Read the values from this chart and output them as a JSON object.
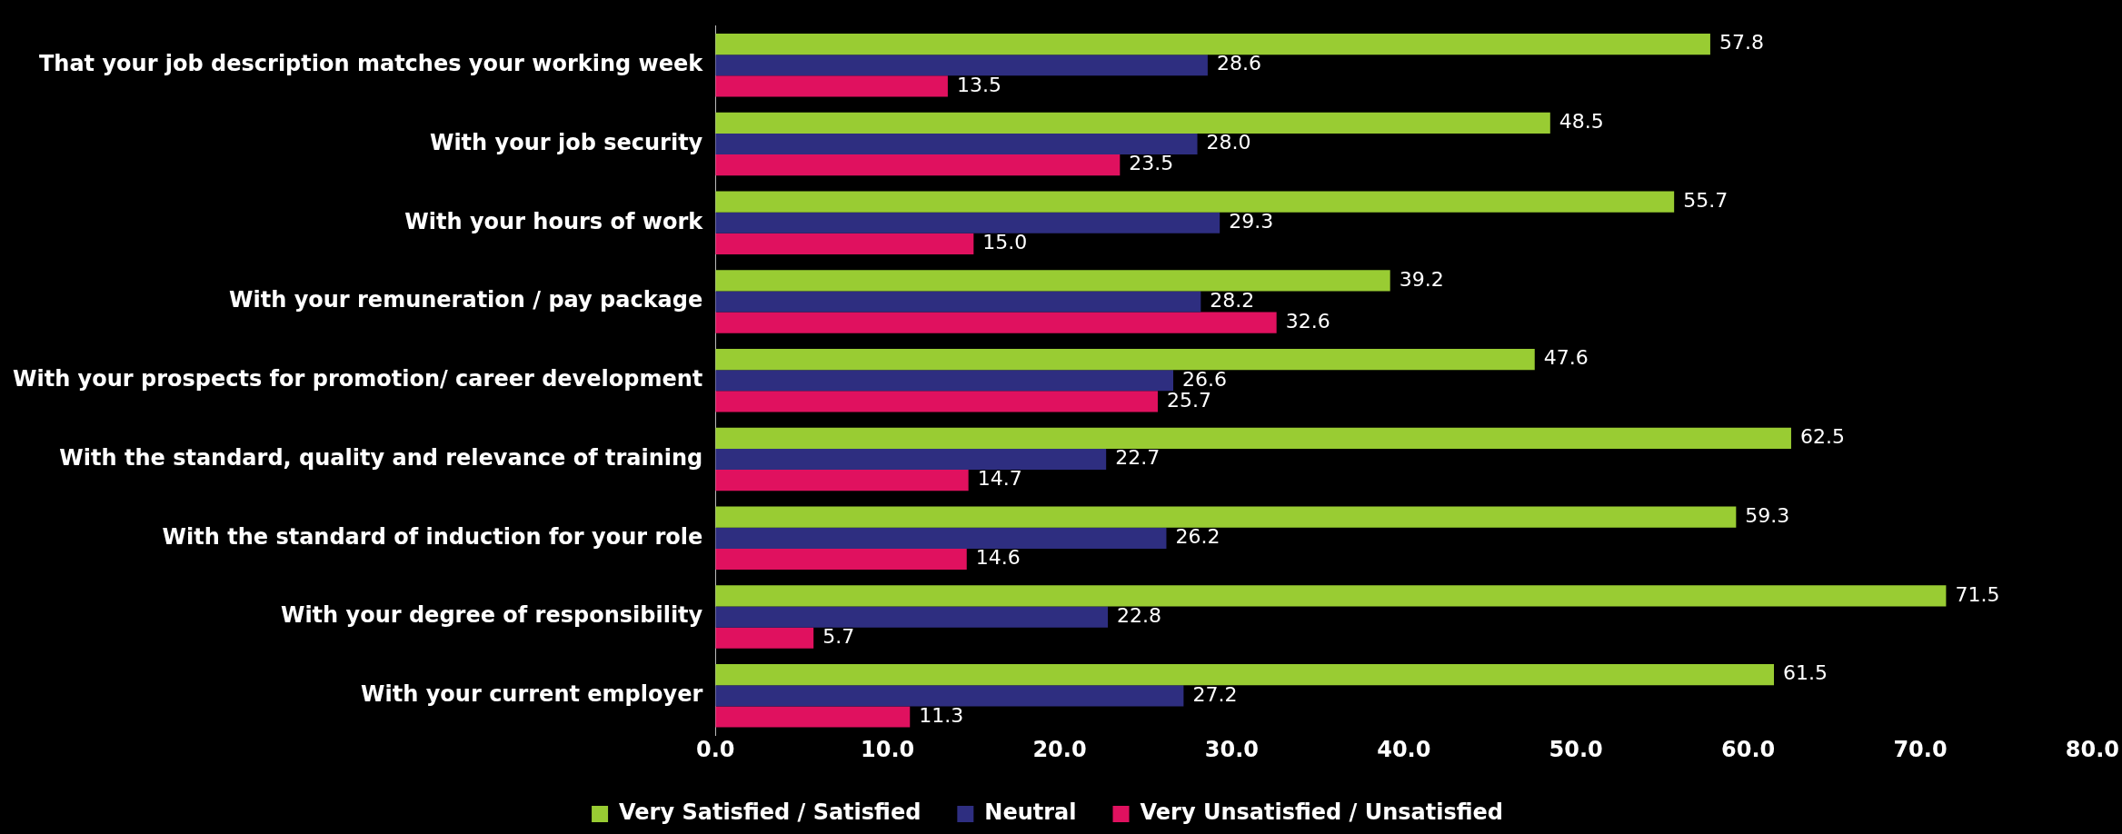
{
  "chart_data": {
    "type": "bar",
    "orientation": "horizontal",
    "categories": [
      "That your job description matches your working week",
      "With your job security",
      "With your hours of work",
      "With your remuneration / pay package",
      "With your prospects for promotion/ career development",
      "With the standard, quality and relevance of training",
      "With the standard of induction for your role",
      "With your degree of responsibility",
      "With your current employer"
    ],
    "series": [
      {
        "name": "Very Satisfied / Satisfied",
        "color": "#99cc33",
        "values": [
          57.8,
          48.5,
          55.7,
          39.2,
          47.6,
          62.5,
          59.3,
          71.5,
          61.5
        ],
        "value_labels": [
          "57.8",
          "48.5",
          "55.7",
          "39.2",
          "47.6",
          "62.5",
          "59.3",
          "71.5",
          "61.5"
        ]
      },
      {
        "name": "Neutral",
        "color": "#2e2e80",
        "values": [
          28.6,
          28.0,
          29.3,
          28.2,
          26.6,
          22.7,
          26.2,
          22.8,
          27.2
        ],
        "value_labels": [
          "28.6",
          "28.0",
          "29.3",
          "28.2",
          "26.6",
          "22.7",
          "26.2",
          "22.8",
          "27.2"
        ]
      },
      {
        "name": "Very Unsatisfied / Unsatisfied",
        "color": "#e0115f",
        "values": [
          13.5,
          23.5,
          15.0,
          32.6,
          25.7,
          14.7,
          14.6,
          5.7,
          11.3
        ],
        "value_labels": [
          "13.5",
          "23.5",
          "15.0",
          "32.6",
          "25.7",
          "14.7",
          "14.6",
          "5.7",
          "11.3"
        ]
      }
    ],
    "xlim": [
      0,
      80
    ],
    "xticks": [
      {
        "value": 0,
        "label": "0.0"
      },
      {
        "value": 10,
        "label": "10.0"
      },
      {
        "value": 20,
        "label": "20.0"
      },
      {
        "value": 30,
        "label": "30.0"
      },
      {
        "value": 40,
        "label": "40.0"
      },
      {
        "value": 50,
        "label": "50.0"
      },
      {
        "value": 60,
        "label": "60.0"
      },
      {
        "value": 70,
        "label": "70.0"
      },
      {
        "value": 80,
        "label": "80.0"
      }
    ],
    "grid": false,
    "legend": "bottom"
  }
}
